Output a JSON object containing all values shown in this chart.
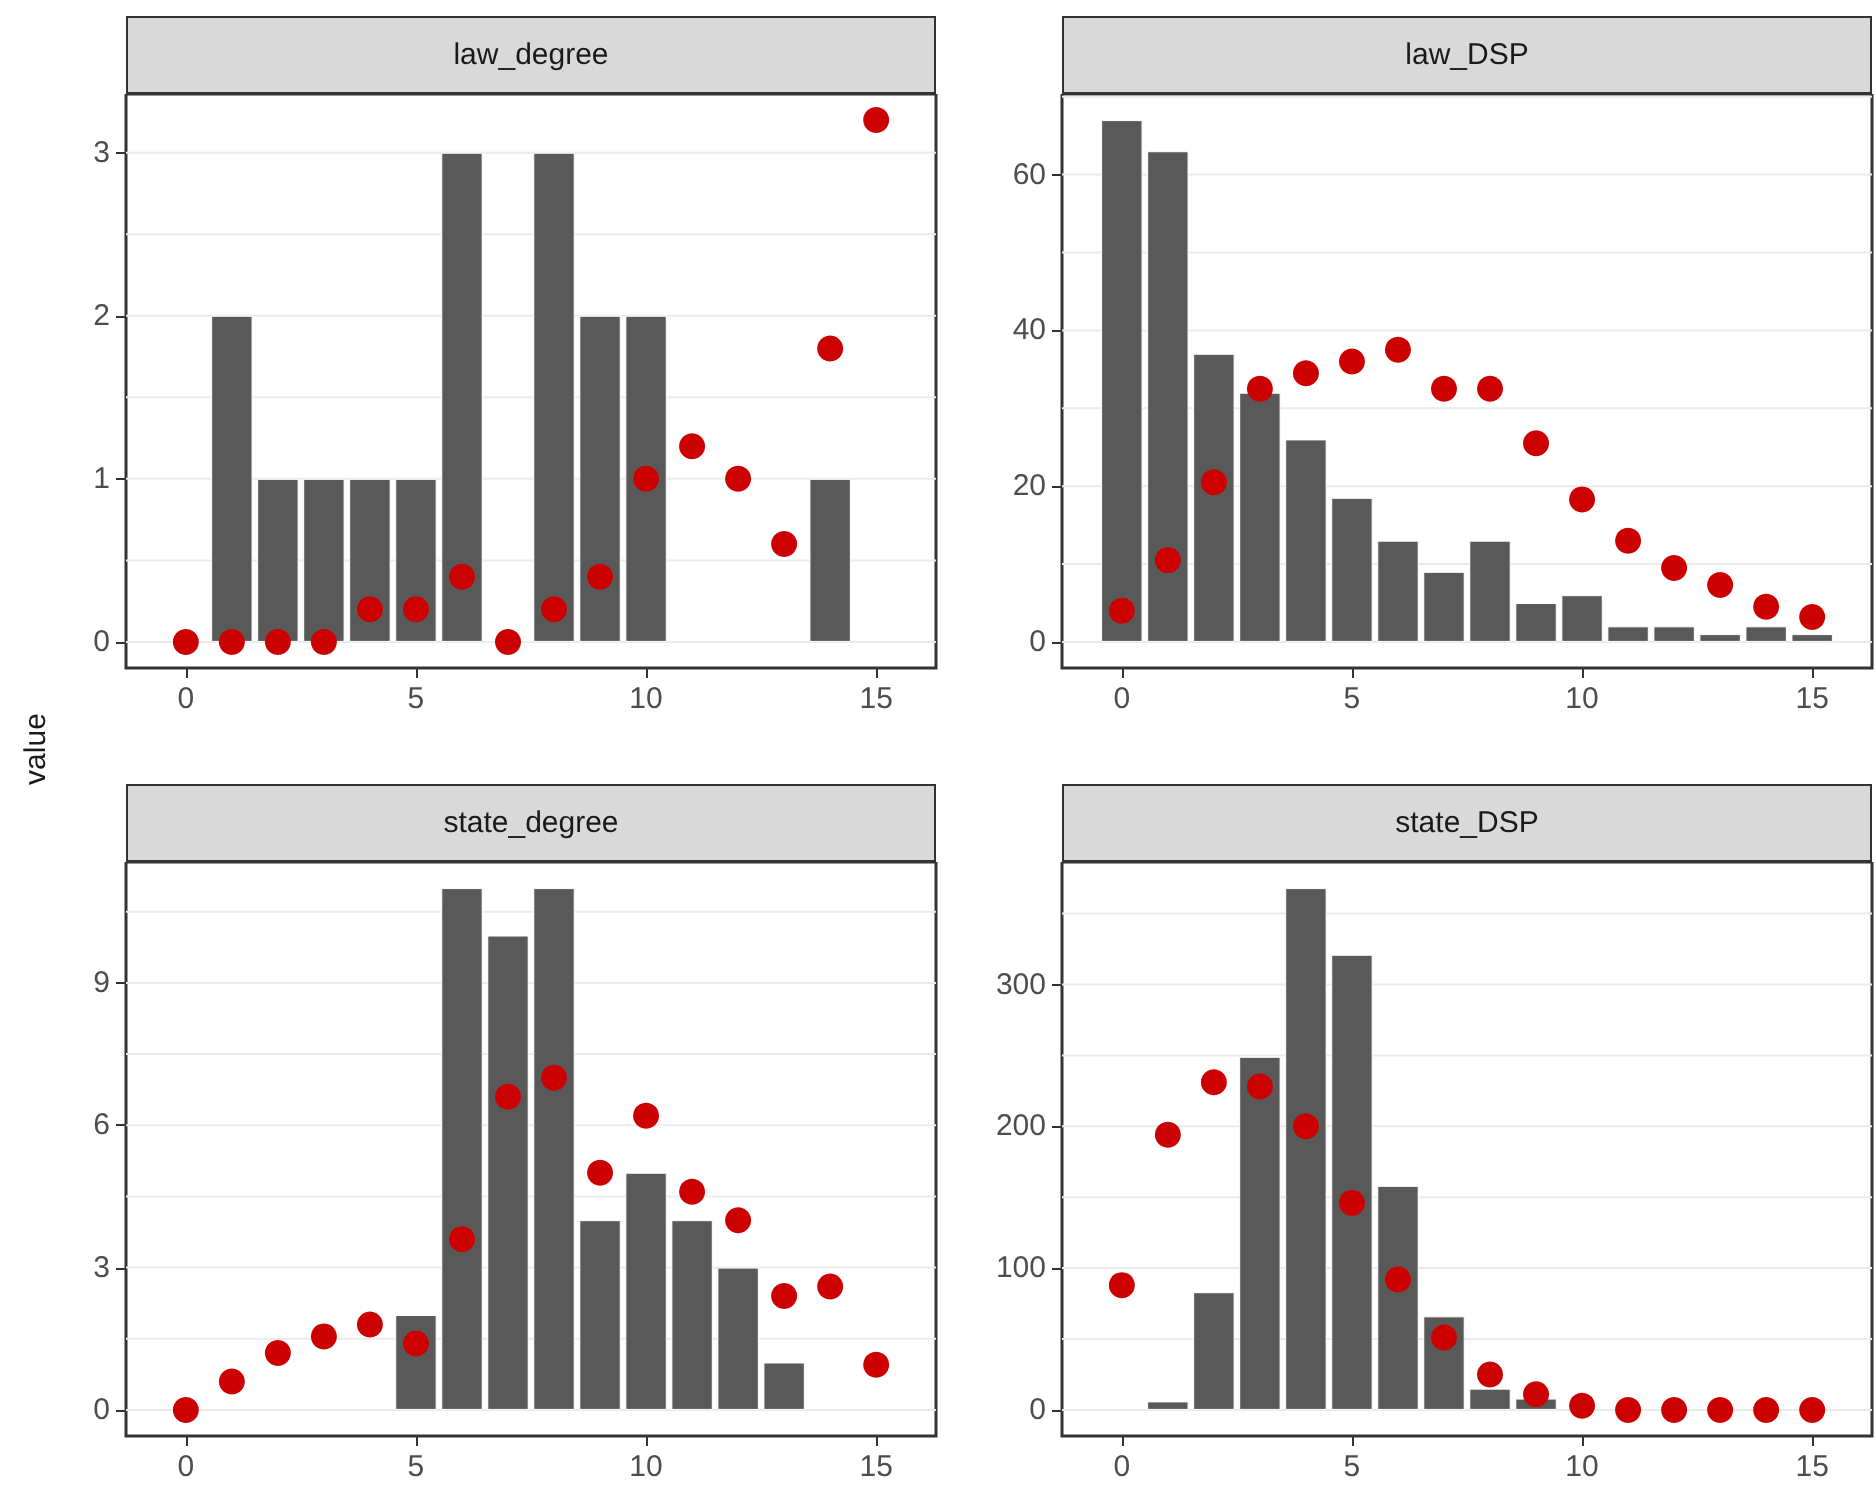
{
  "chart_data": [
    {
      "type": "bar",
      "title": "law_degree",
      "ylabel": "value",
      "xlim": [
        -1.3,
        16.3
      ],
      "xticks": [
        0,
        5,
        10,
        15
      ],
      "ylim": [
        -0.16,
        3.36
      ],
      "yticks": [
        0,
        1,
        2,
        3
      ],
      "grid": "y",
      "marker": "circle",
      "series": [
        {
          "type": "bar",
          "color": "#595959",
          "x": [
            0,
            1,
            2,
            3,
            4,
            5,
            6,
            7,
            8,
            9,
            10,
            11,
            12,
            13,
            14,
            15
          ],
          "values": [
            0,
            2,
            1,
            1,
            1,
            1,
            3,
            0,
            3,
            2,
            2,
            0,
            0,
            0,
            1,
            0
          ]
        },
        {
          "type": "scatter",
          "color": "#cc0000",
          "x": [
            0,
            1,
            2,
            3,
            4,
            5,
            6,
            7,
            8,
            9,
            10,
            11,
            12,
            13,
            14,
            15
          ],
          "values": [
            0,
            0,
            0,
            0,
            0.2,
            0.2,
            0.4,
            0,
            0.2,
            0.4,
            1,
            1.2,
            1,
            0.6,
            1.8,
            3.2
          ]
        }
      ]
    },
    {
      "type": "bar",
      "title": "law_DSP",
      "xlim": [
        -1.3,
        16.3
      ],
      "xticks": [
        0,
        5,
        10,
        15
      ],
      "ylim": [
        -3.35,
        70.35
      ],
      "yticks": [
        0,
        20,
        40,
        60
      ],
      "grid": "y",
      "marker": "circle",
      "series": [
        {
          "type": "bar",
          "color": "#595959",
          "x": [
            0,
            1,
            2,
            3,
            4,
            5,
            6,
            7,
            8,
            9,
            10,
            11,
            12,
            13,
            14,
            15
          ],
          "values": [
            67,
            63,
            37,
            32,
            26,
            18.5,
            13,
            9,
            13,
            5,
            6,
            2,
            2,
            1,
            2,
            1
          ]
        },
        {
          "type": "scatter",
          "color": "#cc0000",
          "x": [
            0,
            1,
            2,
            3,
            4,
            5,
            6,
            7,
            8,
            9,
            10,
            11,
            12,
            13,
            14,
            15
          ],
          "values": [
            4,
            10.5,
            20.5,
            32.5,
            34.5,
            36,
            37.5,
            32.5,
            32.5,
            25.5,
            18.3,
            13,
            9.5,
            7.3,
            4.5,
            3.2
          ]
        }
      ]
    },
    {
      "type": "bar",
      "title": "state_degree",
      "xlim": [
        -1.3,
        16.3
      ],
      "xticks": [
        0,
        5,
        10,
        15
      ],
      "ylim": [
        -0.55,
        11.55
      ],
      "yticks": [
        0,
        3,
        6,
        9
      ],
      "grid": "y",
      "marker": "circle",
      "series": [
        {
          "type": "bar",
          "color": "#595959",
          "x": [
            0,
            1,
            2,
            3,
            4,
            5,
            6,
            7,
            8,
            9,
            10,
            11,
            12,
            13,
            14,
            15
          ],
          "values": [
            0,
            0,
            0,
            0,
            0,
            2,
            11,
            10,
            11,
            4,
            5,
            4,
            3,
            1,
            0,
            0
          ]
        },
        {
          "type": "scatter",
          "color": "#cc0000",
          "x": [
            0,
            1,
            2,
            3,
            4,
            5,
            6,
            7,
            8,
            9,
            10,
            11,
            12,
            13,
            14,
            15
          ],
          "values": [
            0,
            0.6,
            1.2,
            1.55,
            1.8,
            1.4,
            3.6,
            6.6,
            7,
            5,
            6.2,
            4.6,
            4,
            2.4,
            2.6,
            0.95
          ]
        }
      ]
    },
    {
      "type": "bar",
      "title": "state_DSP",
      "xlim": [
        -1.3,
        16.3
      ],
      "xticks": [
        0,
        5,
        10,
        15
      ],
      "ylim": [
        -18.4,
        386.4
      ],
      "yticks": [
        0,
        100,
        200,
        300
      ],
      "grid": "y",
      "marker": "circle",
      "series": [
        {
          "type": "bar",
          "color": "#595959",
          "x": [
            0,
            1,
            2,
            3,
            4,
            5,
            6,
            7,
            8,
            9,
            10,
            11,
            12,
            13,
            14,
            15
          ],
          "values": [
            0,
            6,
            83,
            249,
            368,
            321,
            158,
            66,
            15,
            8,
            0,
            0,
            0,
            0,
            0,
            0
          ]
        },
        {
          "type": "scatter",
          "color": "#cc0000",
          "x": [
            0,
            1,
            2,
            3,
            4,
            5,
            6,
            7,
            8,
            9,
            10,
            11,
            12,
            13,
            14,
            15
          ],
          "values": [
            88,
            194,
            231,
            228,
            200,
            146,
            92,
            51,
            25,
            11,
            3,
            0,
            0,
            0,
            0,
            0
          ]
        }
      ]
    }
  ]
}
